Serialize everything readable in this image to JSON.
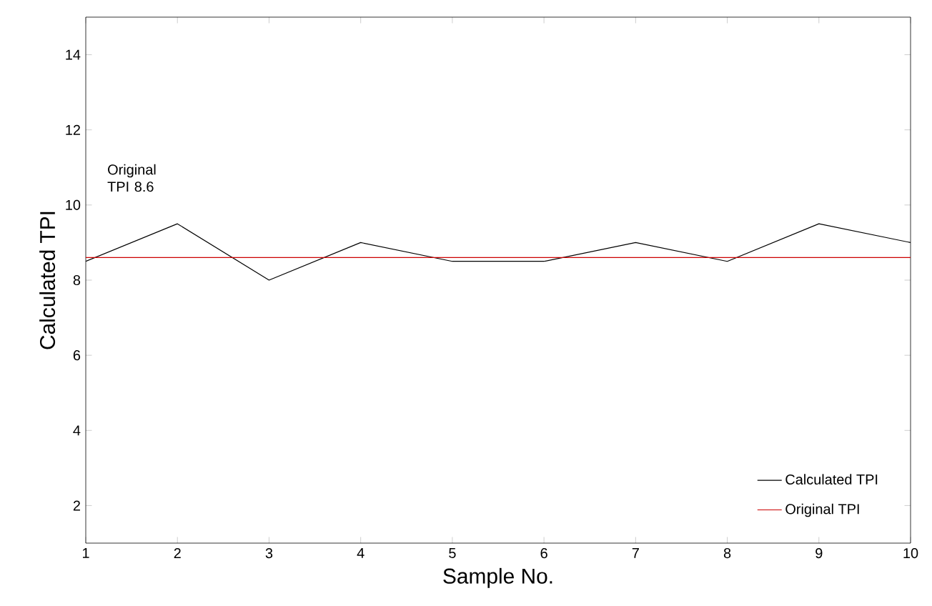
{
  "chart_data": {
    "type": "line",
    "xlabel": "Sample No.",
    "ylabel": "Calculated TPI",
    "x": [
      1,
      2,
      3,
      4,
      5,
      6,
      7,
      8,
      9,
      10
    ],
    "series": [
      {
        "name": "Calculated TPI",
        "color": "#000000",
        "values": [
          8.5,
          9.5,
          8,
          9,
          8.5,
          8.5,
          9,
          8.5,
          9.5,
          9
        ]
      },
      {
        "name": "Original TPI",
        "color": "#cc0000",
        "x": [
          1,
          10
        ],
        "values": [
          8.6,
          8.6
        ]
      }
    ],
    "annotations": [
      "Original TPI 8.6"
    ],
    "xlim": [
      1,
      10
    ],
    "ylim": [
      1,
      15
    ],
    "xticks": [
      1,
      2,
      3,
      4,
      5,
      6,
      7,
      8,
      9,
      10
    ],
    "yticks": [
      2,
      4,
      6,
      8,
      10,
      12,
      14
    ],
    "grid": false,
    "legend": "bottom right",
    "marker": "none",
    "line_style": "solid"
  }
}
